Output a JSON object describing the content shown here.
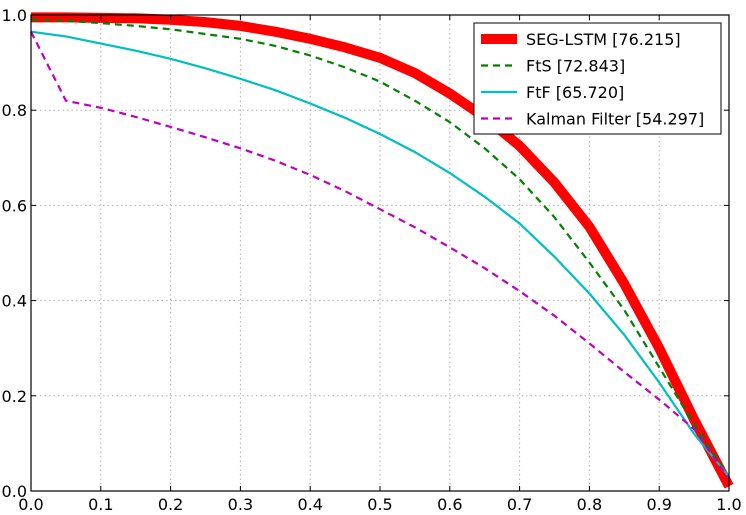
{
  "chart_data": {
    "type": "line",
    "title": "",
    "xlabel": "",
    "ylabel": "",
    "xlim": [
      0,
      1
    ],
    "ylim": [
      0,
      1
    ],
    "grid": true,
    "legend_position": "top-right",
    "x_ticks": [
      "0.0",
      "0.1",
      "0.2",
      "0.3",
      "0.4",
      "0.5",
      "0.6",
      "0.7",
      "0.8",
      "0.9",
      "1.0"
    ],
    "y_ticks": [
      "0.0",
      "0.2",
      "0.4",
      "0.6",
      "0.8",
      "1.0"
    ],
    "series": [
      {
        "name": "SEG-LSTM [76.215]",
        "color": "#ff0000",
        "style": "solid-thick",
        "x": [
          0.0,
          0.05,
          0.1,
          0.15,
          0.2,
          0.25,
          0.3,
          0.35,
          0.4,
          0.45,
          0.5,
          0.55,
          0.6,
          0.65,
          0.7,
          0.75,
          0.8,
          0.85,
          0.9,
          0.95,
          1.0
        ],
        "y": [
          0.995,
          0.995,
          0.994,
          0.993,
          0.99,
          0.985,
          0.977,
          0.965,
          0.95,
          0.932,
          0.91,
          0.878,
          0.835,
          0.785,
          0.725,
          0.648,
          0.555,
          0.435,
          0.3,
          0.15,
          0.01
        ]
      },
      {
        "name": "FtS [72.843]",
        "color": "#008000",
        "style": "dashed",
        "x": [
          0.0,
          0.05,
          0.1,
          0.15,
          0.2,
          0.25,
          0.3,
          0.35,
          0.4,
          0.45,
          0.5,
          0.55,
          0.6,
          0.65,
          0.7,
          0.75,
          0.8,
          0.85,
          0.9,
          0.95,
          1.0
        ],
        "y": [
          0.99,
          0.988,
          0.983,
          0.977,
          0.97,
          0.96,
          0.95,
          0.935,
          0.915,
          0.89,
          0.86,
          0.82,
          0.775,
          0.72,
          0.655,
          0.575,
          0.48,
          0.38,
          0.26,
          0.14,
          0.03
        ]
      },
      {
        "name": "FtF [65.720]",
        "color": "#00bfbf",
        "style": "solid",
        "x": [
          0.0,
          0.05,
          0.1,
          0.15,
          0.2,
          0.25,
          0.3,
          0.35,
          0.4,
          0.45,
          0.5,
          0.55,
          0.6,
          0.65,
          0.7,
          0.75,
          0.8,
          0.85,
          0.9,
          0.95,
          1.0
        ],
        "y": [
          0.965,
          0.955,
          0.94,
          0.925,
          0.908,
          0.888,
          0.866,
          0.842,
          0.814,
          0.784,
          0.75,
          0.712,
          0.668,
          0.618,
          0.562,
          0.492,
          0.415,
          0.328,
          0.228,
          0.12,
          0.03
        ]
      },
      {
        "name": "Kalman Filter [54.297]",
        "color": "#bf00bf",
        "style": "dashed",
        "x": [
          0.0,
          0.05,
          0.1,
          0.15,
          0.2,
          0.25,
          0.3,
          0.35,
          0.4,
          0.45,
          0.5,
          0.55,
          0.6,
          0.65,
          0.7,
          0.75,
          0.8,
          0.85,
          0.9,
          0.95,
          1.0
        ],
        "y": [
          0.965,
          0.82,
          0.805,
          0.786,
          0.765,
          0.743,
          0.72,
          0.694,
          0.664,
          0.63,
          0.592,
          0.554,
          0.512,
          0.468,
          0.42,
          0.368,
          0.31,
          0.25,
          0.192,
          0.13,
          0.025
        ]
      }
    ]
  }
}
